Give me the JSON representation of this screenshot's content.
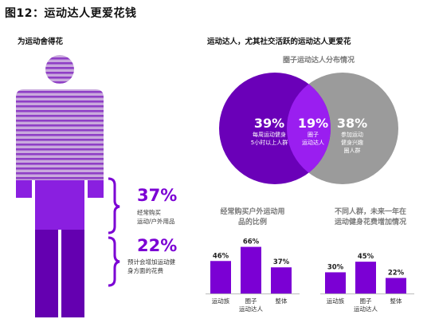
{
  "title": "图12：运动达人更爱花钱",
  "left_section": {
    "subtitle": "为运动舍得花",
    "stat1": {
      "value": "37%",
      "desc_lines": [
        "经常购买",
        "运动/户外用品"
      ]
    },
    "stat2": {
      "value": "22%",
      "desc_lines": [
        "预计会增加运动健",
        "身方面的花费"
      ]
    }
  },
  "right_section": {
    "subtitle": "运动达人，尤其社交活跃的运动达人更爱花",
    "venn_title": "圈子运动达人分布情况",
    "venn": {
      "left": {
        "value": "39%",
        "lines": [
          "每周运动健身",
          "5小时以上人群"
        ],
        "color": "#6a00b8"
      },
      "overlap": {
        "value": "19%",
        "lines": [
          "圈子",
          "运动达人"
        ],
        "color": "#9a1ef0"
      },
      "right": {
        "value": "38%",
        "lines": [
          "参加运动",
          "健身兴趣",
          "圈人群"
        ],
        "color": "#9b9b9b"
      }
    }
  },
  "chart_data": [
    {
      "type": "bar",
      "title_lines": [
        "经常购买户外运动用",
        "品的比例"
      ],
      "categories": [
        [
          "运动族"
        ],
        [
          "圈子",
          "运动达人"
        ],
        [
          "整体"
        ]
      ],
      "values": [
        46,
        66,
        37
      ],
      "labels": [
        "46%",
        "66%",
        "37%"
      ],
      "ylim": [
        0,
        70
      ],
      "color": "#7b00d4"
    },
    {
      "type": "bar",
      "title_lines": [
        "不同人群，未来一年在",
        "运动健身花费增加情况"
      ],
      "categories": [
        [
          "运动族"
        ],
        [
          "圈子",
          "运动达人"
        ],
        [
          "整体"
        ]
      ],
      "values": [
        30,
        45,
        22
      ],
      "labels": [
        "30%",
        "45%",
        "22%"
      ],
      "ylim": [
        0,
        70
      ],
      "color": "#7b00d4"
    }
  ]
}
